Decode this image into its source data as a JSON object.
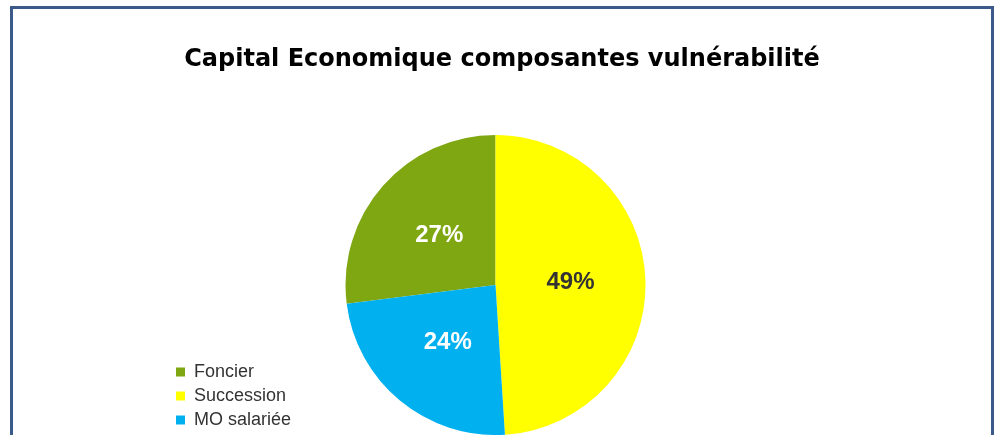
{
  "chart_data": {
    "type": "pie",
    "title": "Capital Economique composantes vulnérabilité",
    "categories": [
      "Foncier",
      "Succession",
      "MO salariée"
    ],
    "values": [
      27,
      49,
      24
    ],
    "colors": [
      "#7fa712",
      "#ffff00",
      "#00b0ef"
    ],
    "value_labels": [
      "27%",
      "49%",
      "24%"
    ],
    "legend": "bottom left"
  }
}
